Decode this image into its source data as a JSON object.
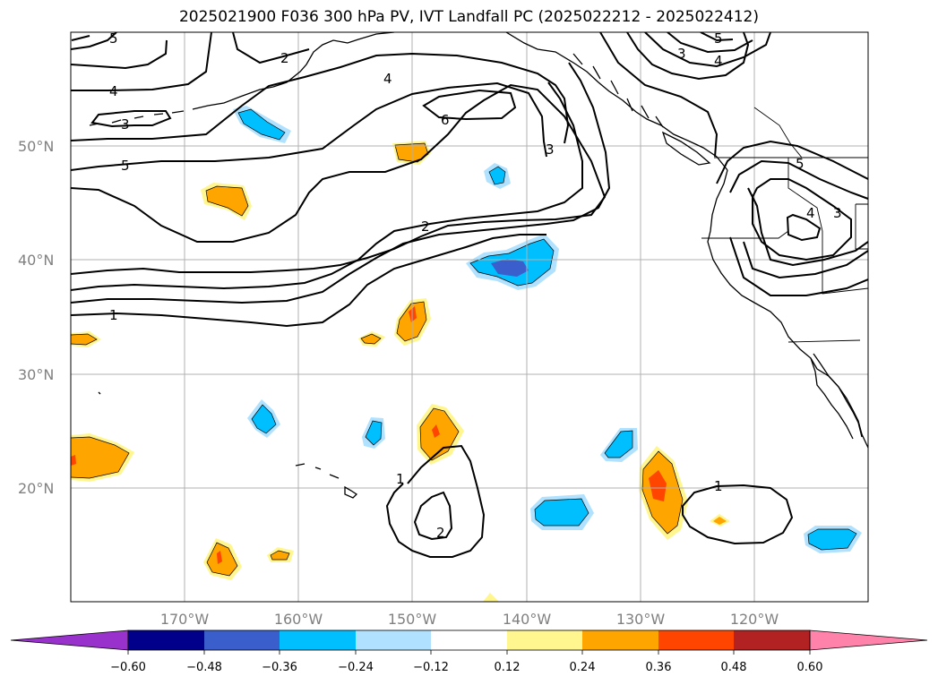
{
  "title": "2025021900 F036 300 hPa PV, IVT Landfall PC (2025022212 - 2025022412)",
  "map": {
    "projection": "PlateCarree",
    "lon_range": [
      -180,
      -110
    ],
    "lat_range": [
      10,
      60
    ],
    "lat_ticks": [
      {
        "value": 50,
        "label": "50°N"
      },
      {
        "value": 40,
        "label": "40°N"
      },
      {
        "value": 30,
        "label": "30°N"
      },
      {
        "value": 20,
        "label": "20°N"
      }
    ],
    "lon_ticks": [
      {
        "value": -170,
        "label": "170°W"
      },
      {
        "value": -160,
        "label": "160°W"
      },
      {
        "value": -150,
        "label": "150°W"
      },
      {
        "value": -140,
        "label": "140°W"
      },
      {
        "value": -130,
        "label": "130°W"
      },
      {
        "value": -120,
        "label": "120°W"
      }
    ],
    "gridlines": true,
    "contour_field": "300 hPa PV",
    "contour_labels": [
      "5",
      "2",
      "4",
      "3",
      "4",
      "6",
      "3",
      "2",
      "1",
      "5",
      "5",
      "4",
      "3",
      "5",
      "4",
      "3",
      "1",
      "2",
      "1"
    ],
    "fill_field": "IVT Landfall PC"
  },
  "colorbar": {
    "levels": [
      -0.72,
      -0.6,
      -0.48,
      -0.36,
      -0.24,
      -0.12,
      0.12,
      0.24,
      0.36,
      0.48,
      0.6,
      0.72
    ],
    "tick_labels": [
      "−0.60",
      "−0.48",
      "−0.36",
      "−0.24",
      "−0.12",
      "0.12",
      "0.24",
      "0.36",
      "0.48",
      "0.60"
    ],
    "colors": [
      "#9932cc",
      "#00008b",
      "#3a5fcd",
      "#00bfff",
      "#b0e2ff",
      "#ffffff",
      "#fff68f",
      "#ffa500",
      "#ff4500",
      "#b22222",
      "#ff82ab"
    ],
    "extend": "both"
  }
}
